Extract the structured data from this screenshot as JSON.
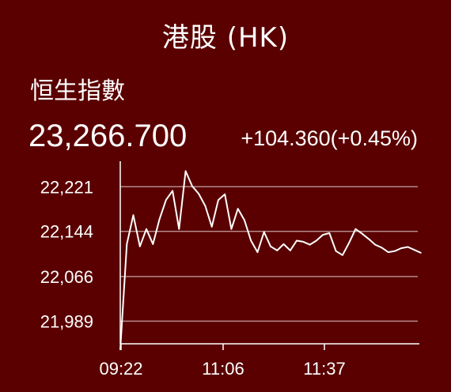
{
  "header": {
    "title": "港股 (HK)"
  },
  "quote": {
    "index_name": "恒生指數",
    "price": "23,266.700",
    "change": "+104.360(+0.45%)"
  },
  "colors": {
    "background": "#5a0000",
    "line": "#ffffff",
    "grid": "#b58a8a"
  },
  "chart_data": {
    "type": "line",
    "title": "",
    "xlabel": "",
    "ylabel": "",
    "ylim": [
      21950,
      22265
    ],
    "y_ticks": [
      {
        "value": 22221,
        "label": "22,221"
      },
      {
        "value": 22144,
        "label": "22,144"
      },
      {
        "value": 22066,
        "label": "22,066"
      },
      {
        "value": 21989,
        "label": "21,989"
      }
    ],
    "x_ticks": [
      "09:22",
      "11:06",
      "11:37"
    ],
    "grid": true,
    "series": [
      {
        "values": [
          21940,
          22122,
          22172,
          22118,
          22148,
          22122,
          22165,
          22198,
          22214,
          22148,
          22248,
          22222,
          22209,
          22188,
          22152,
          22198,
          22208,
          22148,
          22183,
          22163,
          22128,
          22108,
          22143,
          22118,
          22111,
          22122,
          22111,
          22128,
          22126,
          22121,
          22128,
          22138,
          22141,
          22110,
          22103,
          22124,
          22148,
          22140,
          22131,
          22121,
          22116,
          22108,
          22110,
          22115,
          22117,
          22112,
          22107
        ]
      }
    ]
  }
}
